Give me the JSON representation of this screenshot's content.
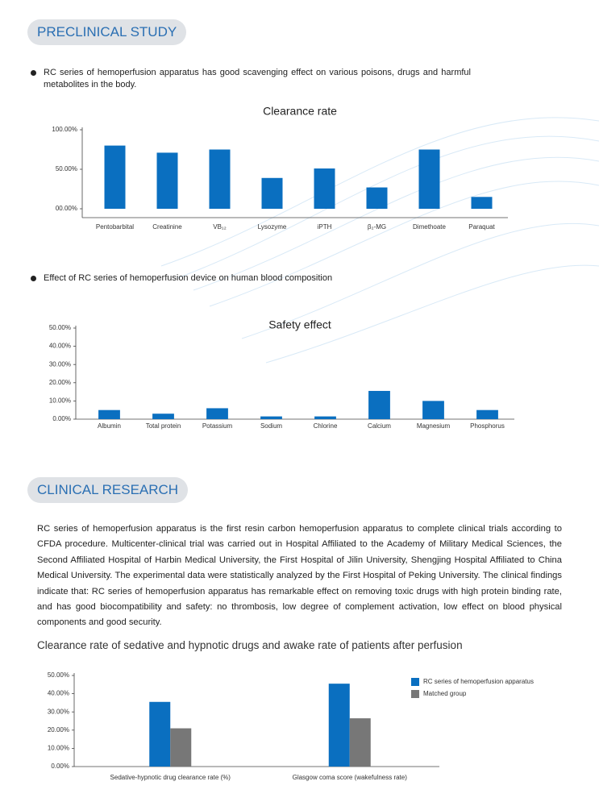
{
  "preclinical": {
    "heading": "PRECLINICAL STUDY",
    "bullet1": "RC series of hemoperfusion apparatus has good scavenging effect on various poisons, drugs and harmful metabolites in the body.",
    "bullet2": "Effect of RC series of hemoperfusion device on human blood composition"
  },
  "clinical": {
    "heading": "CLINICAL RESEARCH",
    "paragraph": "RC series of hemoperfusion apparatus is the first resin carbon hemoperfusion apparatus to complete clinical trials according to CFDA procedure. Multicenter-clinical trial was carried out in Hospital Affiliated to the Academy of Military Medical Sciences, the Second Affiliated Hospital of Harbin Medical University, the First Hospital of Jilin University, Shengjing Hospital Affiliated to China Medical University. The experimental data were statistically analyzed by the First Hospital of Peking University. The clinical findings indicate that: RC series of hemoperfusion apparatus has remarkable effect on removing toxic drugs with high protein binding rate, and has good biocompatibility and safety: no thrombosis, low degree of complement activation, low effect on blood physical components and good security."
  },
  "chart_data": [
    {
      "type": "bar",
      "title": "Clearance rate",
      "categories": [
        "Pentobarbital",
        "Creatinine",
        "VB₁₂",
        "Lysozyme",
        "iPTH",
        "β₂-MG",
        "Dimethoate",
        "Paraquat"
      ],
      "values": [
        80,
        71,
        75,
        39,
        51,
        27,
        75,
        15
      ],
      "color": "#0a6fc0",
      "ylim": [
        0,
        100
      ],
      "yticks": [
        {
          "value": 0,
          "label": "00.00%"
        },
        {
          "value": 50,
          "label": "50.00%"
        },
        {
          "value": 100,
          "label": "100.00%"
        }
      ]
    },
    {
      "type": "bar",
      "title": "Safety effect",
      "categories": [
        "Albumin",
        "Total protein",
        "Potassium",
        "Sodium",
        "Chlorine",
        "Calcium",
        "Magnesium",
        "Phosphorus"
      ],
      "values": [
        5,
        3,
        6,
        1.5,
        1.5,
        15.5,
        10,
        5
      ],
      "color": "#0a6fc0",
      "ylim": [
        0,
        50
      ],
      "yticks": [
        {
          "value": 0,
          "label": "0.00%"
        },
        {
          "value": 10,
          "label": "10.00%"
        },
        {
          "value": 20,
          "label": "20.00%"
        },
        {
          "value": 30,
          "label": "30.00%"
        },
        {
          "value": 40,
          "label": "40.00%"
        },
        {
          "value": 50,
          "label": "50.00%"
        }
      ]
    },
    {
      "type": "grouped_bar",
      "title": "Clearance rate of sedative and hypnotic drugs and awake rate of patients after perfusion",
      "categories": [
        "Sedative-hypnotic drug clearance rate (%)",
        "Glasgow coma score (wakefulness rate)"
      ],
      "series": [
        {
          "name": "RC series of hemoperfusion apparatus",
          "color": "#0a6fc0",
          "values": [
            35.5,
            45.5
          ]
        },
        {
          "name": "Matched group",
          "color": "#777777",
          "values": [
            21,
            26.5
          ]
        }
      ],
      "ylim": [
        0,
        50
      ],
      "yticks": [
        {
          "value": 0,
          "label": "0.00%"
        },
        {
          "value": 10,
          "label": "10.00%"
        },
        {
          "value": 20,
          "label": "20.00%"
        },
        {
          "value": 30,
          "label": "30.00%"
        },
        {
          "value": 40,
          "label": "40.00%"
        },
        {
          "value": 50,
          "label": "50.00%"
        }
      ],
      "legend": "top-right"
    }
  ]
}
